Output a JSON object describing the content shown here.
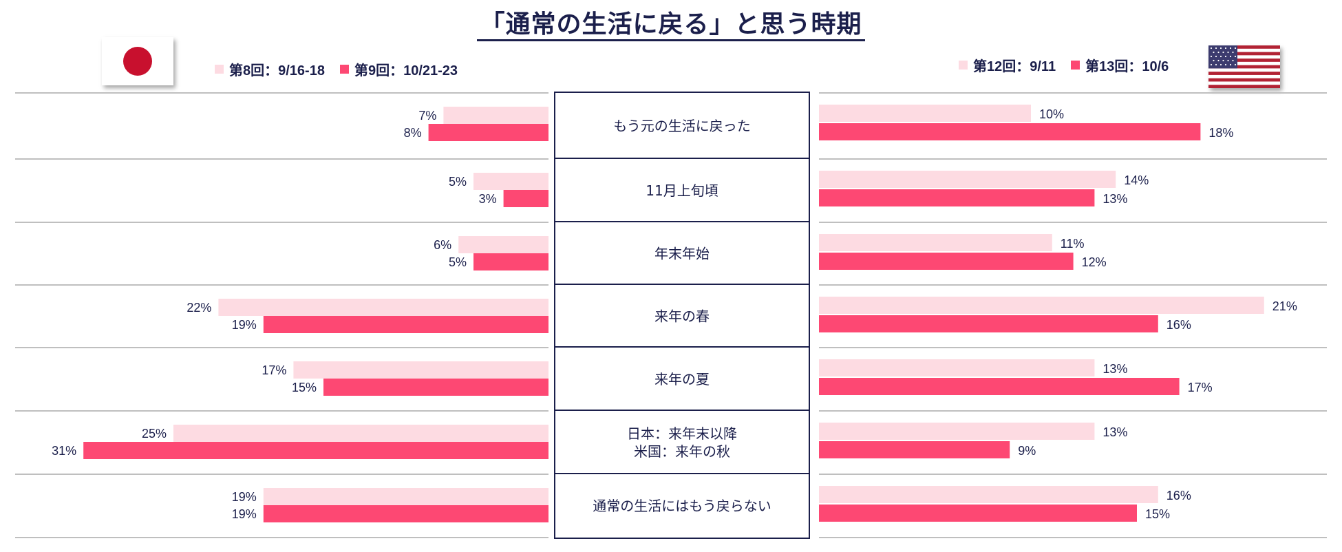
{
  "title": "「通常の生活に戻る」と思う時期",
  "colors": {
    "light": "#fddbe2",
    "dark": "#fd4873",
    "text": "#1b1f4b",
    "rule": "#bfbfbf",
    "box": "#1b1f4b"
  },
  "chart_data": {
    "type": "bar",
    "categories": [
      [
        "もう元の生活に戻った"
      ],
      [
        "11月上旬頃"
      ],
      [
        "年末年始"
      ],
      [
        "来年の春"
      ],
      [
        "来年の夏"
      ],
      [
        "日本：来年末以降",
        "米国：来年の秋"
      ],
      [
        "通常の生活にはもう戻らない"
      ]
    ],
    "japan": {
      "flag": "japan-flag",
      "series": [
        {
          "name": "第8回：9/16-18",
          "color": "#fddbe2",
          "values": [
            7,
            5,
            6,
            22,
            17,
            25,
            19
          ]
        },
        {
          "name": "第9回：10/21-23",
          "color": "#fd4873",
          "values": [
            8,
            3,
            5,
            19,
            15,
            31,
            19
          ]
        }
      ]
    },
    "usa": {
      "flag": "usa-flag",
      "series": [
        {
          "name": "第12回：9/11",
          "color": "#fddbe2",
          "values": [
            10,
            14,
            11,
            21,
            13,
            13,
            16
          ]
        },
        {
          "name": "第13回：10/6",
          "color": "#fd4873",
          "values": [
            18,
            13,
            12,
            16,
            17,
            9,
            15
          ]
        }
      ]
    },
    "unit": "%"
  }
}
